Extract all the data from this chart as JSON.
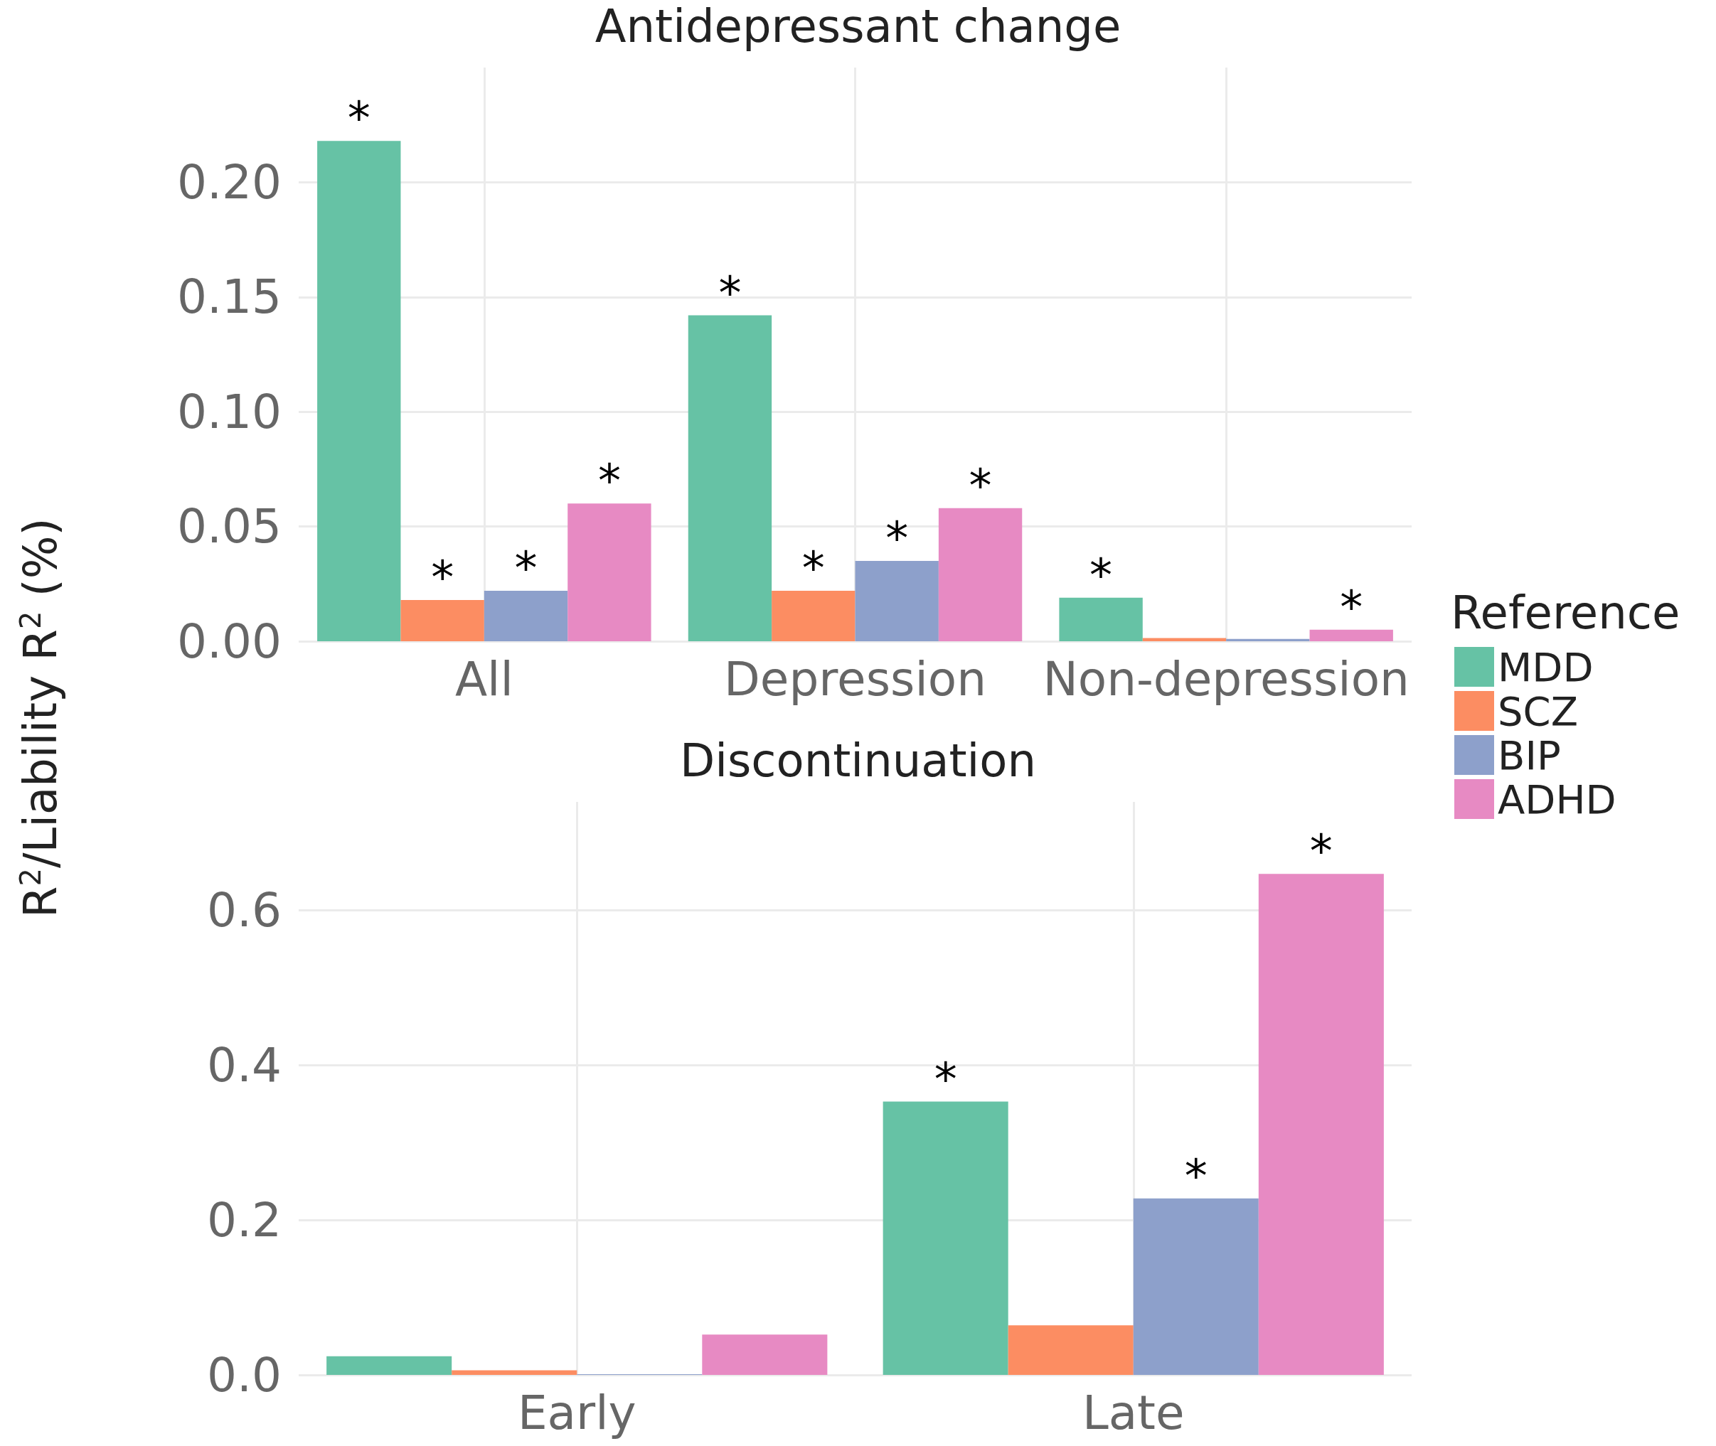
{
  "chart_data": [
    {
      "type": "bar",
      "title": "Antidepressant change",
      "ylabel": "R$^{2}$/Liability R$^{2}$ (%)",
      "legend_title": "Reference",
      "legend": "right",
      "grid": true,
      "categories": [
        "All",
        "Depression",
        "Non-depression"
      ],
      "ylim": [
        0,
        0.25
      ],
      "yticks": [
        {
          "value": 0,
          "label": "0.00"
        },
        {
          "value": 0.05,
          "label": "0.05"
        },
        {
          "value": 0.1,
          "label": "0.10"
        },
        {
          "value": 0.15,
          "label": "0.15"
        },
        {
          "value": 0.2,
          "label": "0.20"
        }
      ],
      "series": [
        {
          "name": "MDD",
          "color": "#66c2a5",
          "values": [
            0.218,
            0.142,
            0.019
          ],
          "value_labels": [
            "*",
            "*",
            "*"
          ]
        },
        {
          "name": "SCZ",
          "color": "#fc8d62",
          "values": [
            0.018,
            0.022,
            0.0014
          ],
          "value_labels": [
            "*",
            "*",
            null
          ]
        },
        {
          "name": "BIP",
          "color": "#8da0cb",
          "values": [
            0.022,
            0.035,
            0.001
          ],
          "value_labels": [
            "*",
            "*",
            null
          ]
        },
        {
          "name": "ADHD",
          "color": "#e78ac3",
          "values": [
            0.06,
            0.058,
            0.005
          ],
          "value_labels": [
            "*",
            "*",
            "*"
          ]
        }
      ]
    },
    {
      "type": "bar",
      "title": "Discontinuation",
      "grid": true,
      "categories": [
        "Early",
        "Late"
      ],
      "ylim": [
        0,
        0.74
      ],
      "yticks": [
        {
          "value": 0,
          "label": "0.0"
        },
        {
          "value": 0.2,
          "label": "0.2"
        },
        {
          "value": 0.4,
          "label": "0.4"
        },
        {
          "value": 0.6,
          "label": "0.6"
        }
      ],
      "series": [
        {
          "color": "#66c2a5",
          "values": [
            0.024,
            0.353
          ],
          "value_labels": [
            null,
            "*"
          ]
        },
        {
          "color": "#fc8d62",
          "values": [
            0.006,
            0.064
          ],
          "value_labels": [
            null,
            null
          ]
        },
        {
          "color": "#8da0cb",
          "values": [
            0.001,
            0.228
          ],
          "value_labels": [
            null,
            "*"
          ]
        },
        {
          "color": "#e78ac3",
          "values": [
            0.052,
            0.647
          ],
          "value_labels": [
            null,
            "*"
          ]
        }
      ]
    }
  ]
}
